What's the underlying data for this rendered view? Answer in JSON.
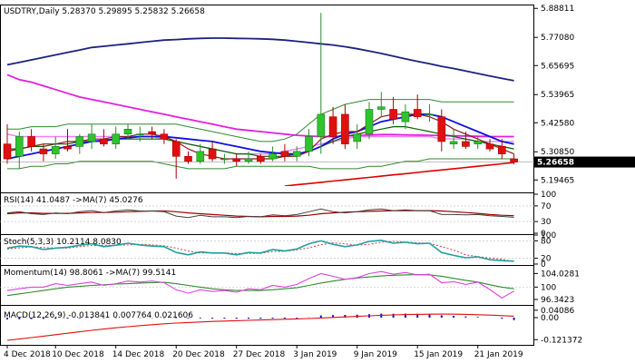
{
  "main": {
    "title_line": "USDTRY,Daily   5.28370  5.29895  5.25832  5.26658",
    "current_price": "5.26658",
    "price_ticks": [
      "5.88811",
      "5.77080",
      "5.65695",
      "5.53965",
      "5.42580",
      "5.30850",
      "5.19465"
    ],
    "dates": [
      "4 Dec 2018",
      "10 Dec 2018",
      "14 Dec 2018",
      "20 Dec 2018",
      "27 Dec 2018",
      "3 Jan 2019",
      "9 Jan 2019",
      "15 Jan 2019",
      "21 Jan 2019"
    ]
  },
  "rsi": {
    "title": "RSI(14) 41.0487   ->MA(7) 45.0276",
    "ticks": [
      "100",
      "70",
      "30",
      "0"
    ]
  },
  "stoch": {
    "title": "Stoch(5,3,3) 10.2114  8.0830",
    "ticks": [
      "100",
      "80",
      "20",
      "0"
    ]
  },
  "momentum": {
    "title": "Momentum(14) 98.8061   ->MA(7) 99.5141",
    "ticks": [
      "104.0281",
      "100",
      "96.3423"
    ]
  },
  "macd": {
    "title": "MACD(12,26,9) -0.013841  0.007764  0.021606",
    "ticks": [
      "0.04086",
      "0.00",
      "-0.121372"
    ]
  },
  "chart_data": {
    "type": "candlestick",
    "symbol": "USDTRY",
    "timeframe": "Daily",
    "ohlc_last": {
      "open": 5.2837,
      "high": 5.29895,
      "low": 5.25832,
      "close": 5.26658
    },
    "candles": [
      {
        "o": 5.34,
        "h": 5.42,
        "l": 5.26,
        "c": 5.28
      },
      {
        "o": 5.29,
        "h": 5.39,
        "l": 5.24,
        "c": 5.37
      },
      {
        "o": 5.37,
        "h": 5.4,
        "l": 5.31,
        "c": 5.33
      },
      {
        "o": 5.32,
        "h": 5.34,
        "l": 5.27,
        "c": 5.3
      },
      {
        "o": 5.3,
        "h": 5.37,
        "l": 5.28,
        "c": 5.33
      },
      {
        "o": 5.33,
        "h": 5.4,
        "l": 5.31,
        "c": 5.32
      },
      {
        "o": 5.33,
        "h": 5.38,
        "l": 5.3,
        "c": 5.37
      },
      {
        "o": 5.35,
        "h": 5.42,
        "l": 5.32,
        "c": 5.38
      },
      {
        "o": 5.36,
        "h": 5.4,
        "l": 5.33,
        "c": 5.34
      },
      {
        "o": 5.34,
        "h": 5.41,
        "l": 5.32,
        "c": 5.38
      },
      {
        "o": 5.38,
        "h": 5.42,
        "l": 5.36,
        "c": 5.4
      },
      {
        "o": 5.38,
        "h": 5.41,
        "l": 5.35,
        "c": 5.38
      },
      {
        "o": 5.39,
        "h": 5.41,
        "l": 5.36,
        "c": 5.38
      },
      {
        "o": 5.38,
        "h": 5.4,
        "l": 5.34,
        "c": 5.36
      },
      {
        "o": 5.35,
        "h": 5.36,
        "l": 5.2,
        "c": 5.29
      },
      {
        "o": 5.29,
        "h": 5.31,
        "l": 5.26,
        "c": 5.27
      },
      {
        "o": 5.27,
        "h": 5.34,
        "l": 5.26,
        "c": 5.31
      },
      {
        "o": 5.32,
        "h": 5.35,
        "l": 5.27,
        "c": 5.28
      },
      {
        "o": 5.28,
        "h": 5.3,
        "l": 5.26,
        "c": 5.28
      },
      {
        "o": 5.28,
        "h": 5.3,
        "l": 5.25,
        "c": 5.27
      },
      {
        "o": 5.27,
        "h": 5.31,
        "l": 5.26,
        "c": 5.28
      },
      {
        "o": 5.29,
        "h": 5.3,
        "l": 5.26,
        "c": 5.27
      },
      {
        "o": 5.28,
        "h": 5.33,
        "l": 5.27,
        "c": 5.3
      },
      {
        "o": 5.31,
        "h": 5.34,
        "l": 5.27,
        "c": 5.29
      },
      {
        "o": 5.29,
        "h": 5.33,
        "l": 5.27,
        "c": 5.31
      },
      {
        "o": 5.31,
        "h": 5.4,
        "l": 5.29,
        "c": 5.37
      },
      {
        "o": 5.37,
        "h": 5.87,
        "l": 5.3,
        "c": 5.46
      },
      {
        "o": 5.45,
        "h": 5.49,
        "l": 5.34,
        "c": 5.37
      },
      {
        "o": 5.46,
        "h": 5.5,
        "l": 5.32,
        "c": 5.34
      },
      {
        "o": 5.35,
        "h": 5.42,
        "l": 5.32,
        "c": 5.38
      },
      {
        "o": 5.38,
        "h": 5.51,
        "l": 5.36,
        "c": 5.48
      },
      {
        "o": 5.48,
        "h": 5.55,
        "l": 5.45,
        "c": 5.49
      },
      {
        "o": 5.48,
        "h": 5.53,
        "l": 5.42,
        "c": 5.44
      },
      {
        "o": 5.43,
        "h": 5.5,
        "l": 5.4,
        "c": 5.47
      },
      {
        "o": 5.48,
        "h": 5.54,
        "l": 5.44,
        "c": 5.45
      },
      {
        "o": 5.46,
        "h": 5.5,
        "l": 5.43,
        "c": 5.46
      },
      {
        "o": 5.45,
        "h": 5.48,
        "l": 5.31,
        "c": 5.35
      },
      {
        "o": 5.34,
        "h": 5.4,
        "l": 5.32,
        "c": 5.35
      },
      {
        "o": 5.35,
        "h": 5.39,
        "l": 5.32,
        "c": 5.33
      },
      {
        "o": 5.34,
        "h": 5.37,
        "l": 5.32,
        "c": 5.35
      },
      {
        "o": 5.34,
        "h": 5.36,
        "l": 5.31,
        "c": 5.32
      },
      {
        "o": 5.33,
        "h": 5.36,
        "l": 5.28,
        "c": 5.3
      },
      {
        "o": 5.28,
        "h": 5.3,
        "l": 5.258,
        "c": 5.267
      }
    ],
    "price_range": [
      5.17,
      5.9
    ],
    "overlays": {
      "ma_long_navy": [
        5.66,
        5.67,
        5.68,
        5.69,
        5.7,
        5.71,
        5.72,
        5.73,
        5.735,
        5.74,
        5.745,
        5.75,
        5.755,
        5.76,
        5.762,
        5.765,
        5.767,
        5.768,
        5.768,
        5.767,
        5.766,
        5.765,
        5.763,
        5.76,
        5.755,
        5.75,
        5.745,
        5.74,
        5.733,
        5.725,
        5.716,
        5.706,
        5.695,
        5.684,
        5.674,
        5.664,
        5.654,
        5.645,
        5.635,
        5.625,
        5.615,
        5.605,
        5.596
      ],
      "ma_magenta": [
        5.62,
        5.6,
        5.59,
        5.575,
        5.56,
        5.545,
        5.53,
        5.52,
        5.51,
        5.5,
        5.49,
        5.48,
        5.47,
        5.46,
        5.45,
        5.44,
        5.43,
        5.42,
        5.41,
        5.4,
        5.395,
        5.39,
        5.385,
        5.38,
        5.375,
        5.372,
        5.37,
        5.37,
        5.372,
        5.374,
        5.376,
        5.378,
        5.378,
        5.377,
        5.376,
        5.375,
        5.374,
        5.373,
        5.372,
        5.371,
        5.37,
        5.37,
        5.37
      ],
      "bb_upper_green": [
        5.4,
        5.4,
        5.41,
        5.41,
        5.41,
        5.42,
        5.42,
        5.42,
        5.42,
        5.42,
        5.42,
        5.42,
        5.42,
        5.42,
        5.42,
        5.41,
        5.4,
        5.39,
        5.38,
        5.37,
        5.36,
        5.35,
        5.35,
        5.36,
        5.38,
        5.42,
        5.46,
        5.48,
        5.5,
        5.51,
        5.52,
        5.52,
        5.52,
        5.52,
        5.52,
        5.52,
        5.51,
        5.51,
        5.51,
        5.51,
        5.51,
        5.51,
        5.51
      ],
      "bb_lower_green": [
        5.24,
        5.24,
        5.25,
        5.25,
        5.26,
        5.26,
        5.27,
        5.27,
        5.27,
        5.27,
        5.27,
        5.27,
        5.27,
        5.26,
        5.25,
        5.24,
        5.24,
        5.24,
        5.24,
        5.25,
        5.25,
        5.25,
        5.25,
        5.25,
        5.25,
        5.25,
        5.24,
        5.24,
        5.24,
        5.24,
        5.25,
        5.25,
        5.26,
        5.27,
        5.27,
        5.28,
        5.28,
        5.28,
        5.28,
        5.28,
        5.28,
        5.28,
        5.28
      ],
      "ma_blue": [
        5.28,
        5.29,
        5.3,
        5.31,
        5.32,
        5.33,
        5.34,
        5.35,
        5.355,
        5.36,
        5.365,
        5.37,
        5.37,
        5.37,
        5.365,
        5.36,
        5.355,
        5.35,
        5.34,
        5.33,
        5.32,
        5.31,
        5.305,
        5.3,
        5.3,
        5.31,
        5.33,
        5.36,
        5.38,
        5.39,
        5.41,
        5.43,
        5.44,
        5.45,
        5.46,
        5.46,
        5.45,
        5.43,
        5.41,
        5.39,
        5.37,
        5.35,
        5.34
      ],
      "ma_darkgreen": [
        5.32,
        5.32,
        5.33,
        5.33,
        5.34,
        5.34,
        5.35,
        5.35,
        5.35,
        5.36,
        5.36,
        5.36,
        5.36,
        5.36,
        5.35,
        5.34,
        5.33,
        5.32,
        5.31,
        5.3,
        5.3,
        5.29,
        5.29,
        5.29,
        5.3,
        5.31,
        5.33,
        5.35,
        5.37,
        5.38,
        5.39,
        5.4,
        5.41,
        5.41,
        5.4,
        5.39,
        5.38,
        5.37,
        5.36,
        5.35,
        5.34,
        5.33,
        5.32
      ],
      "ma_pink": [
        5.38,
        5.37,
        5.37,
        5.37,
        5.37,
        5.37,
        5.37,
        5.37,
        5.37,
        5.37,
        5.37,
        5.37,
        5.37,
        5.36,
        5.35,
        5.34,
        5.33,
        5.32,
        5.31,
        5.3,
        5.3,
        5.3,
        5.3,
        5.31,
        5.32,
        5.33,
        5.34,
        5.35,
        5.36,
        5.37,
        5.37,
        5.37,
        5.37,
        5.37,
        5.37,
        5.37,
        5.36,
        5.36,
        5.36,
        5.35,
        5.35,
        5.35,
        5.35
      ],
      "ma_darkred": [
        5.31,
        5.32,
        5.33,
        5.34,
        5.34,
        5.35,
        5.35,
        5.36,
        5.36,
        5.37,
        5.37,
        5.38,
        5.38,
        5.37,
        5.35,
        5.32,
        5.3,
        5.29,
        5.28,
        5.28,
        5.28,
        5.28,
        5.28,
        5.29,
        5.29,
        5.31,
        5.36,
        5.38,
        5.39,
        5.39,
        5.42,
        5.45,
        5.46,
        5.46,
        5.46,
        5.45,
        5.43,
        5.4,
        5.38,
        5.36,
        5.34,
        5.32,
        5.3
      ],
      "trend_red": [
        5.17,
        5.175,
        5.18,
        5.185,
        5.19,
        5.195,
        5.2,
        5.205,
        5.21,
        5.215,
        5.22,
        5.225,
        5.23,
        5.235,
        5.24,
        5.245,
        5.25,
        5.255,
        5.26,
        5.265
      ],
      "hline": 5.267
    },
    "rsi": {
      "range": [
        0,
        100
      ],
      "rsi": [
        52,
        55,
        50,
        48,
        52,
        50,
        55,
        58,
        53,
        57,
        60,
        57,
        57,
        55,
        44,
        40,
        46,
        42,
        42,
        40,
        43,
        42,
        47,
        45,
        48,
        55,
        62,
        55,
        52,
        55,
        60,
        62,
        58,
        60,
        58,
        58,
        48,
        48,
        47,
        48,
        45,
        43,
        41
      ],
      "ma": [
        50,
        52,
        52,
        51,
        51,
        51,
        52,
        53,
        53,
        54,
        55,
        56,
        57,
        57,
        55,
        52,
        50,
        48,
        46,
        44,
        43,
        42,
        43,
        43,
        44,
        46,
        50,
        52,
        54,
        55,
        56,
        57,
        58,
        58,
        58,
        58,
        57,
        55,
        53,
        51,
        48,
        46,
        45
      ]
    },
    "stochastic": {
      "range": [
        0,
        100
      ],
      "k": [
        55,
        62,
        60,
        50,
        55,
        58,
        65,
        70,
        60,
        65,
        72,
        66,
        62,
        60,
        40,
        32,
        42,
        38,
        38,
        32,
        40,
        38,
        50,
        45,
        52,
        70,
        80,
        68,
        60,
        66,
        78,
        82,
        72,
        75,
        70,
        72,
        40,
        30,
        22,
        25,
        15,
        12,
        10
      ],
      "d": [
        52,
        56,
        59,
        57,
        55,
        55,
        60,
        64,
        65,
        65,
        66,
        68,
        66,
        63,
        55,
        45,
        38,
        38,
        39,
        36,
        37,
        37,
        43,
        44,
        49,
        56,
        67,
        73,
        70,
        65,
        68,
        75,
        78,
        76,
        73,
        72,
        60,
        48,
        32,
        26,
        21,
        17,
        8
      ]
    },
    "momentum": {
      "range": [
        95,
        106
      ],
      "momentum": [
        99,
        99.5,
        100,
        100,
        101,
        100.5,
        101,
        101.5,
        100.5,
        101,
        101.8,
        101.5,
        101.8,
        101.3,
        99.2,
        98.2,
        99.2,
        98.7,
        99,
        98.5,
        99.5,
        99.2,
        100.5,
        100,
        100.8,
        102.5,
        104,
        103.2,
        102.3,
        102.8,
        104,
        104.6,
        103.8,
        104.3,
        103.6,
        103.8,
        101.3,
        101.6,
        100.8,
        101.5,
        99.3,
        96.8,
        98.8
      ],
      "ma": [
        97.5,
        98,
        98.5,
        99,
        99.5,
        100,
        100.2,
        100.5,
        100.7,
        100.9,
        101,
        101.2,
        101.3,
        101.4,
        101,
        100.5,
        100,
        99.5,
        99.2,
        99,
        99,
        99,
        99.2,
        99.5,
        99.8,
        100.5,
        101.2,
        101.8,
        102.3,
        102.7,
        103,
        103.3,
        103.5,
        103.6,
        103.7,
        103.6,
        103.2,
        102.6,
        102,
        101.5,
        100.7,
        100,
        99.5
      ]
    },
    "macd": {
      "range": [
        -0.14,
        0.06
      ],
      "histogram": [
        -0.01,
        -0.009,
        -0.008,
        -0.007,
        -0.006,
        -0.005,
        -0.004,
        -0.003,
        -0.003,
        -0.002,
        -0.002,
        -0.002,
        -0.002,
        -0.002,
        -0.003,
        -0.004,
        -0.004,
        -0.005,
        -0.005,
        -0.006,
        -0.006,
        -0.006,
        -0.005,
        -0.005,
        -0.004,
        0.001,
        0.012,
        0.014,
        0.015,
        0.016,
        0.019,
        0.022,
        0.021,
        0.022,
        0.021,
        0.02,
        0.013,
        0.01,
        0.006,
        0.004,
        0.0,
        -0.006,
        -0.0138
      ],
      "signal": [
        -0.125,
        -0.118,
        -0.11,
        -0.102,
        -0.094,
        -0.086,
        -0.078,
        -0.07,
        -0.063,
        -0.056,
        -0.05,
        -0.044,
        -0.039,
        -0.034,
        -0.03,
        -0.027,
        -0.024,
        -0.021,
        -0.019,
        -0.017,
        -0.015,
        -0.013,
        -0.011,
        -0.009,
        -0.007,
        -0.005,
        -0.002,
        0.001,
        0.004,
        0.007,
        0.01,
        0.013,
        0.015,
        0.017,
        0.018,
        0.019,
        0.0195,
        0.019,
        0.018,
        0.016,
        0.014,
        0.011,
        0.0078
      ]
    }
  }
}
